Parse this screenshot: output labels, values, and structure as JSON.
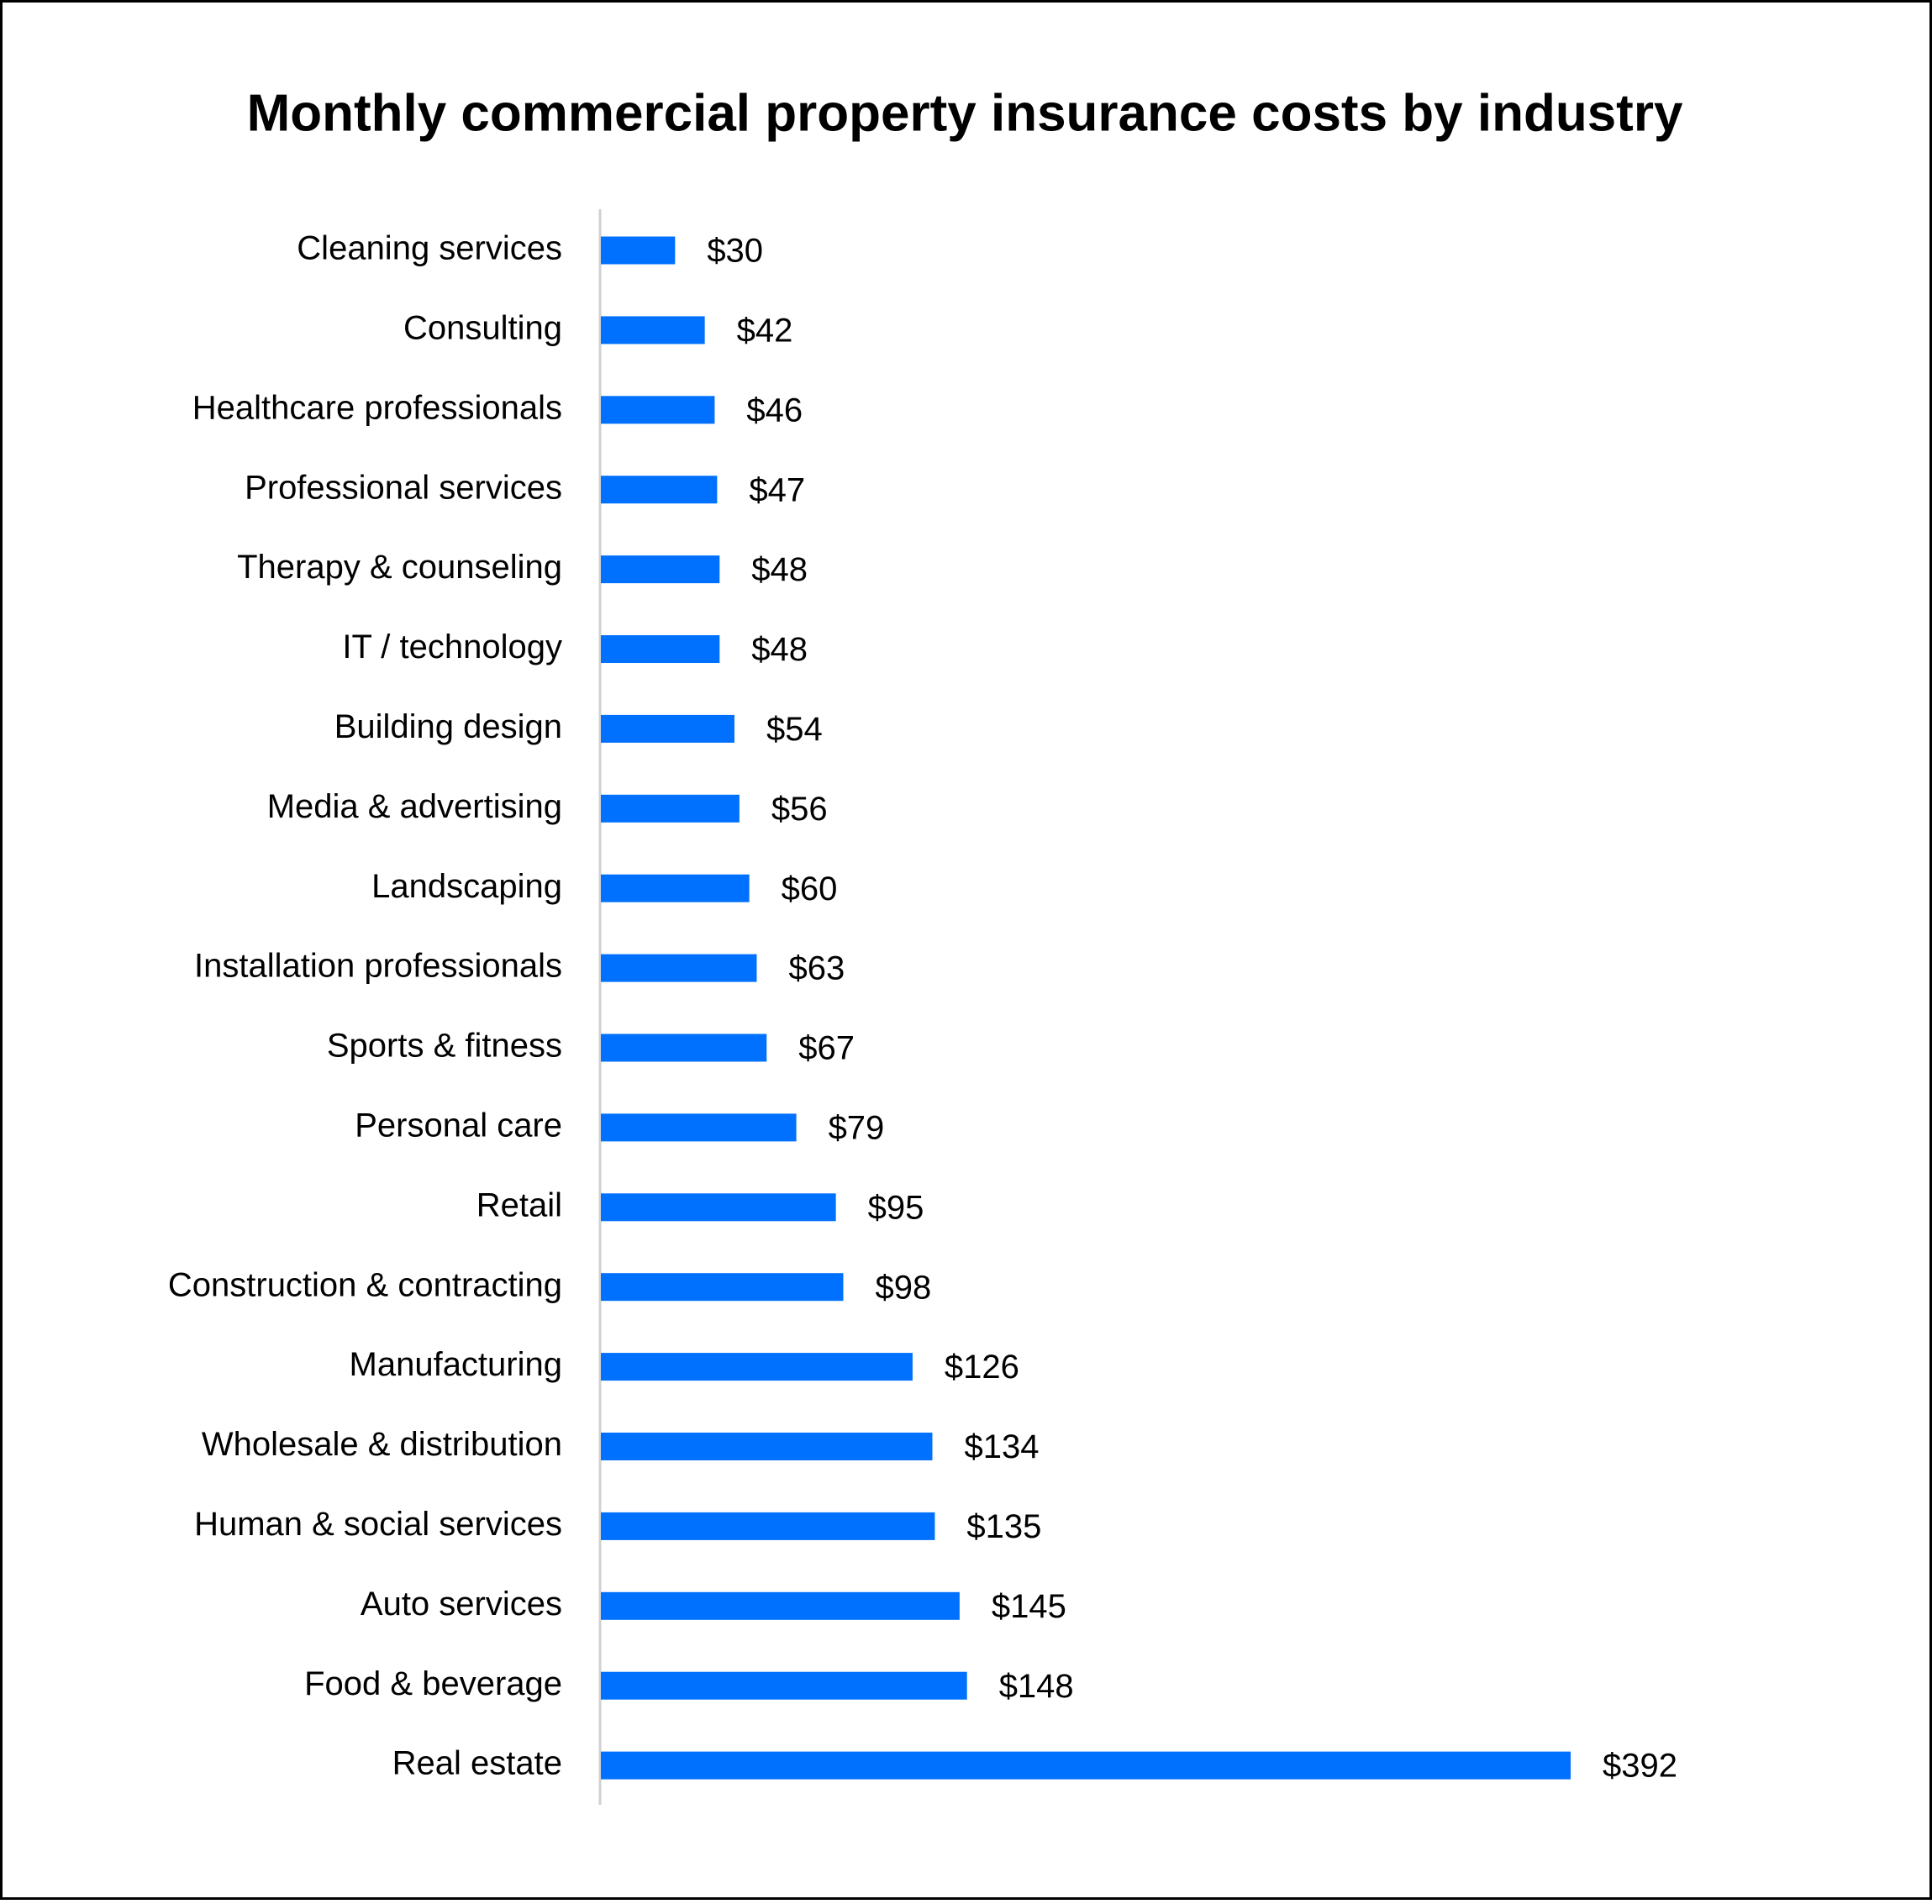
{
  "chart_data": {
    "type": "bar",
    "orientation": "horizontal",
    "title": "Monthly commercial property insurance costs by industry",
    "categories": [
      "Cleaning services",
      "Consulting",
      "Healthcare professionals",
      "Professional services",
      "Therapy & counseling",
      "IT / technology",
      "Building design",
      "Media & advertising",
      "Landscaping",
      "Installation professionals",
      "Sports & fitness",
      "Personal care",
      "Retail",
      "Construction & contracting",
      "Manufacturing",
      "Wholesale & distribution",
      "Human & social services",
      "Auto services",
      "Food & beverage",
      "Real estate"
    ],
    "values": [
      30,
      42,
      46,
      47,
      48,
      48,
      54,
      56,
      60,
      63,
      67,
      79,
      95,
      98,
      126,
      134,
      135,
      145,
      148,
      392
    ],
    "value_labels": [
      "$30",
      "$42",
      "$46",
      "$47",
      "$48",
      "$48",
      "$54",
      "$56",
      "$60",
      "$63",
      "$67",
      "$79",
      "$95",
      "$98",
      "$126",
      "$134",
      "$135",
      "$145",
      "$148",
      "$392"
    ],
    "color": "#0070ff"
  }
}
